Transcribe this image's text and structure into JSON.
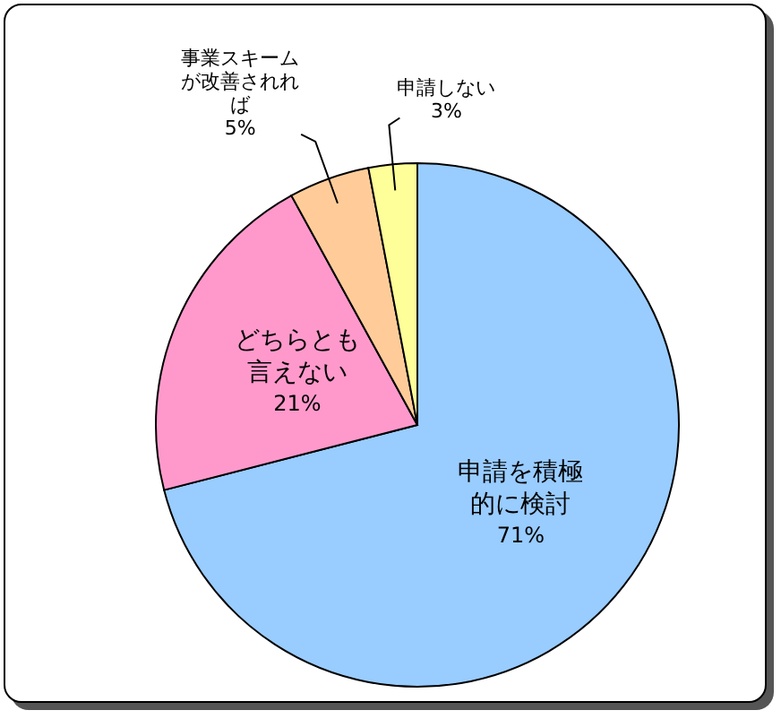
{
  "chart_data": {
    "type": "pie",
    "categories": [
      "申請を積極的に検討",
      "どちらとも言えない",
      "事業スキームが改善されれば",
      "申請しない"
    ],
    "values": [
      71,
      21,
      5,
      3
    ],
    "value_labels": [
      "71%",
      "21%",
      "5%",
      "3%"
    ],
    "colors": [
      "#99ccff",
      "#ff99cc",
      "#ffcc99",
      "#ffff99"
    ],
    "legend": false
  }
}
